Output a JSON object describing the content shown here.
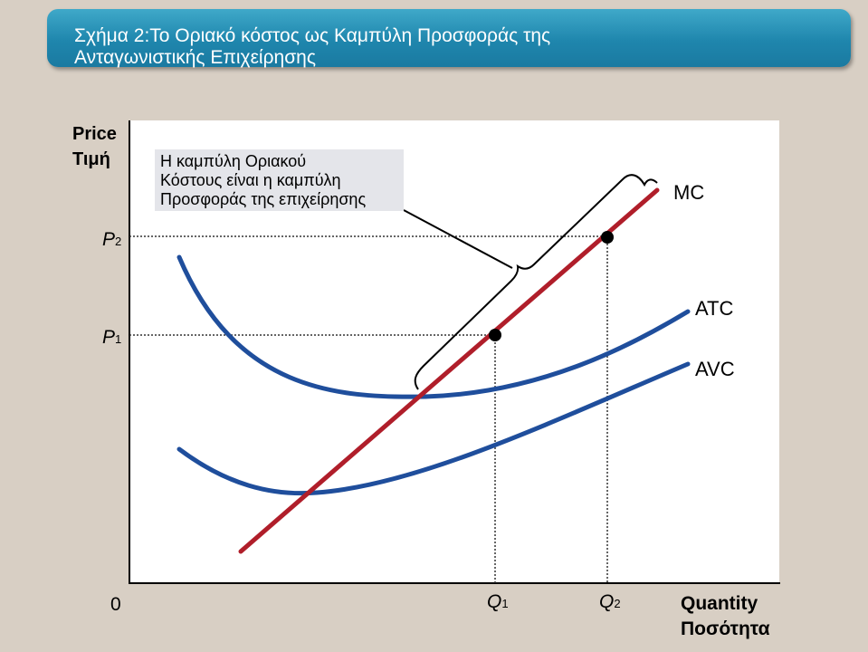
{
  "title": {
    "line1": "Σχήμα 2:Το Οριακό κόστος ως Καμπύλη Προσφοράς της",
    "line2": "Ανταγωνιστικής Επιχείρησης"
  },
  "y_axis": {
    "label_en": "Price",
    "label_gr": "Τιμή"
  },
  "x_axis": {
    "origin": "0",
    "label_en": "Quantity",
    "label_gr": "Ποσότητα"
  },
  "callout": {
    "line1": "Η καμπύλη Οριακού",
    "line2": "Κόστους είναι η καμπύλη",
    "line3": "Προσφοράς της επιχείρησης"
  },
  "markers": {
    "p2": {
      "letter": "P",
      "sub": "2"
    },
    "p1": {
      "letter": "P",
      "sub": "1"
    },
    "q1": {
      "letter": "Q",
      "sub": "1"
    },
    "q2": {
      "letter": "Q",
      "sub": "2"
    }
  },
  "curves": {
    "mc": "MC",
    "atc": "ATC",
    "avc": "AVC"
  },
  "colors": {
    "title_bar": "#1f86ad",
    "mc_line": "#b01e2a",
    "cost_curves": "#1f4e9c",
    "plot_bg": "#ffffff",
    "background": "#d8cfc4"
  }
}
